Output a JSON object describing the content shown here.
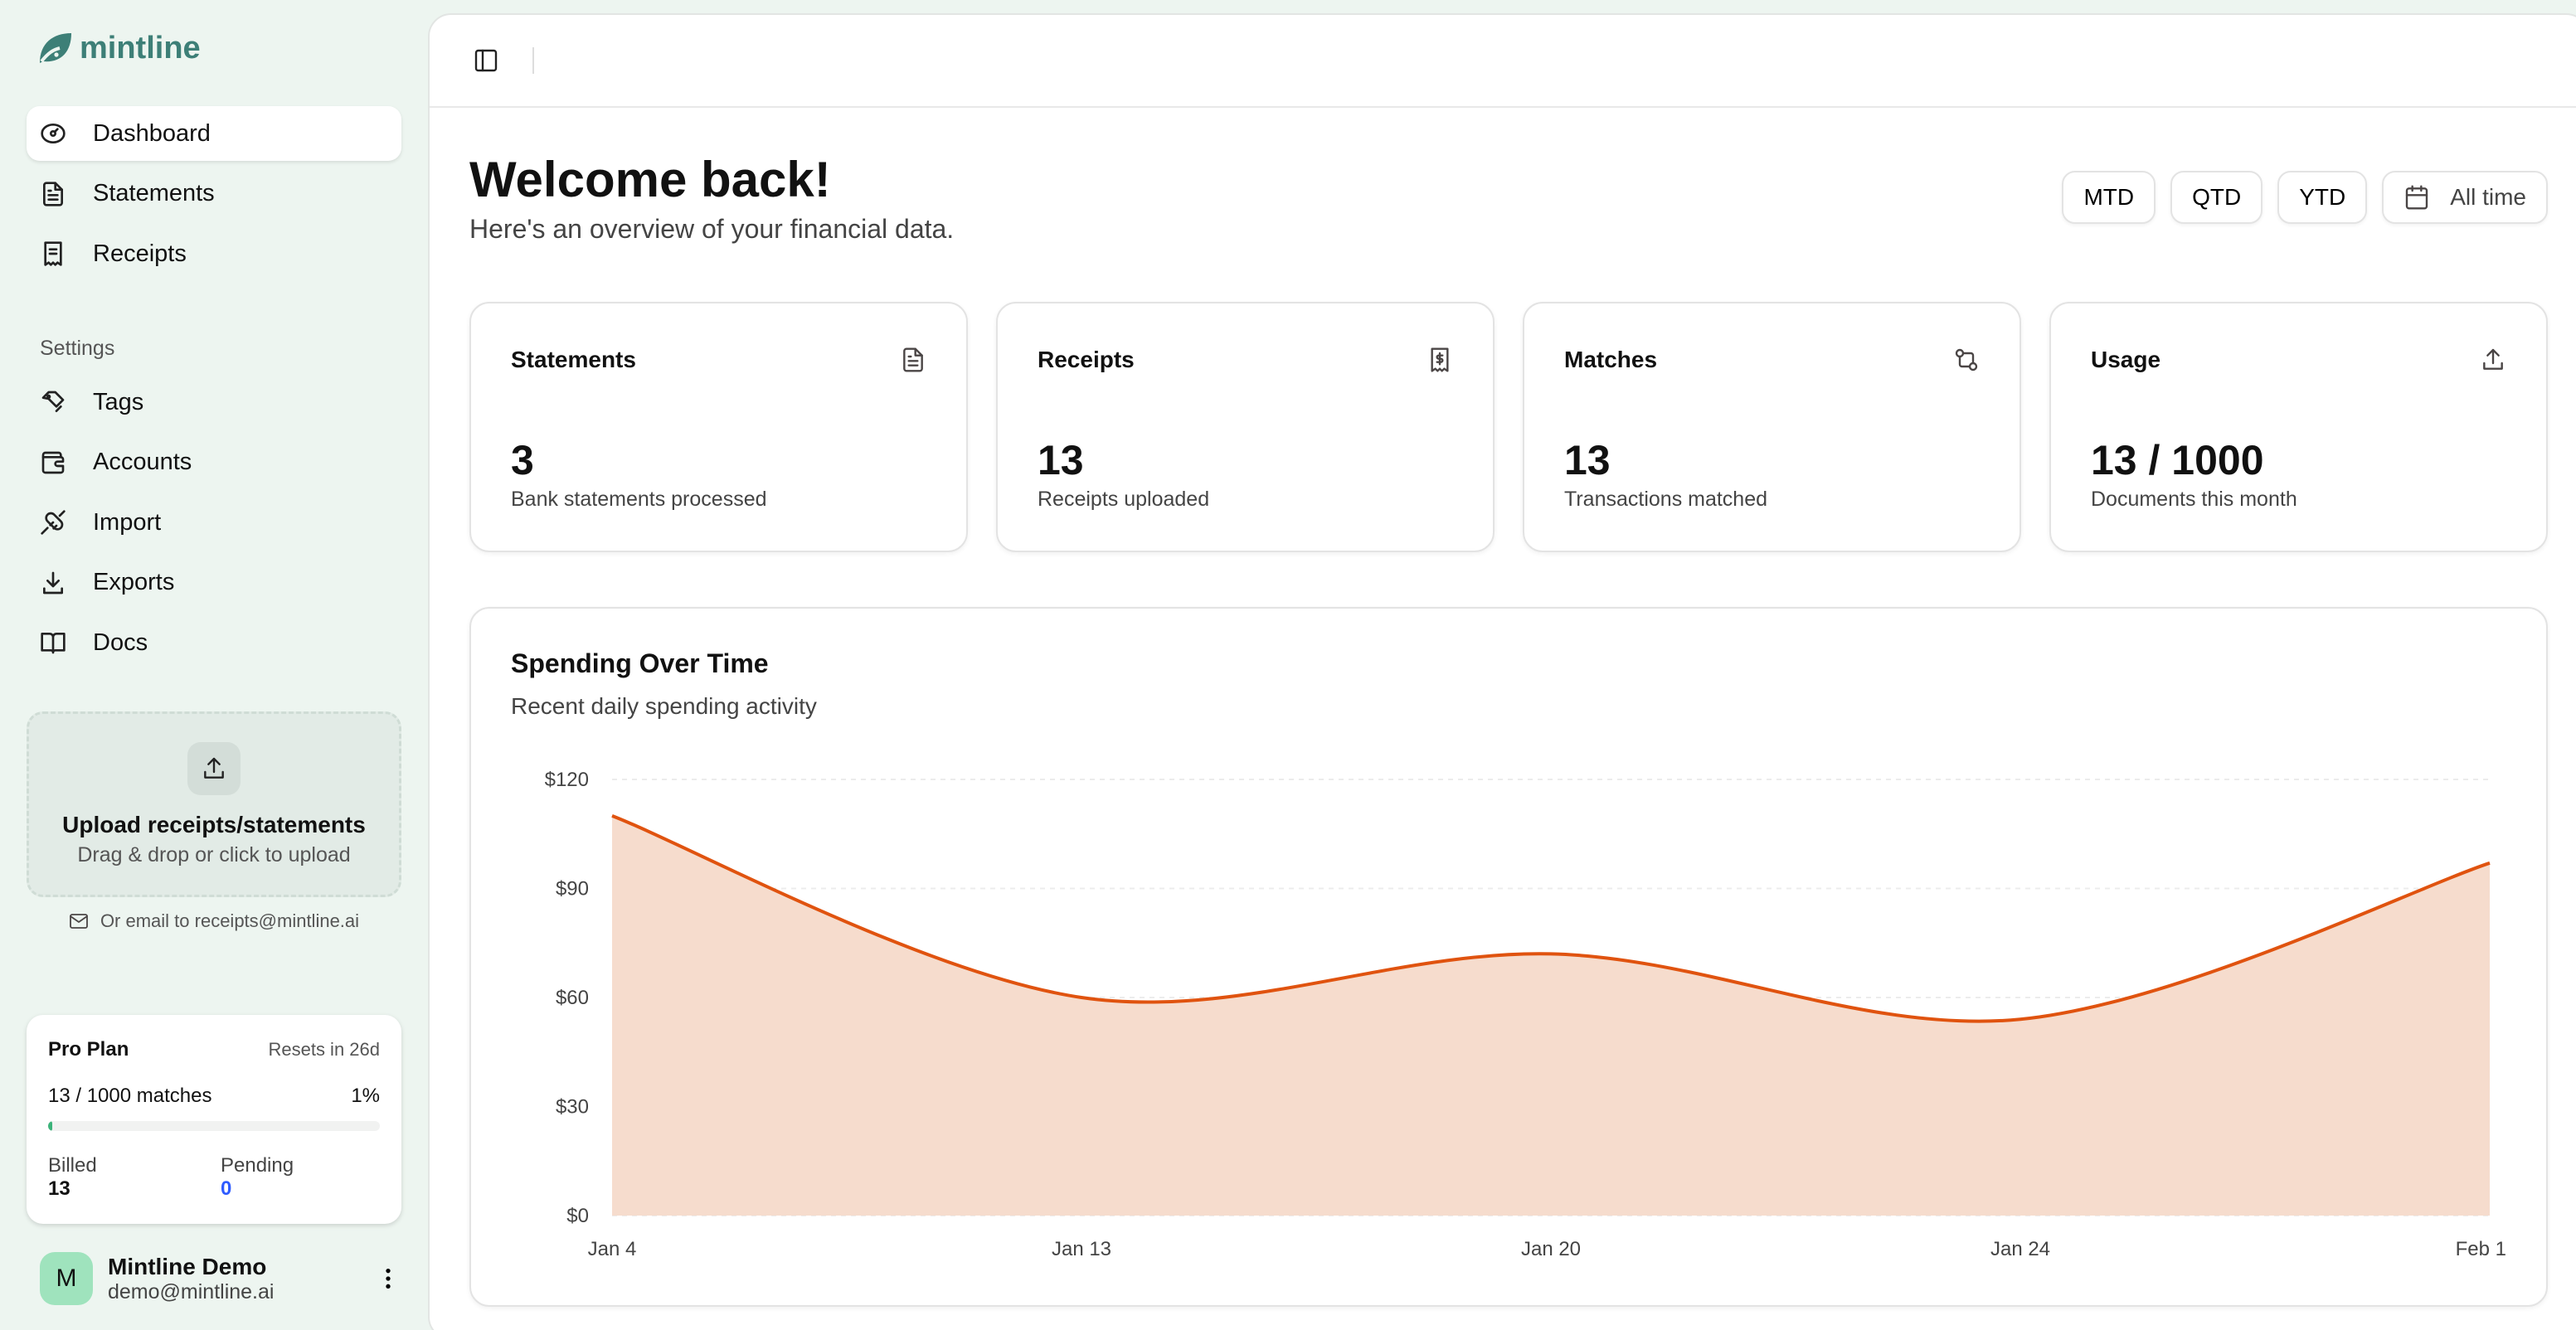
{
  "brand": {
    "name": "mintline",
    "color": "#3d7f77"
  },
  "sidebar": {
    "main_items": [
      {
        "label": "Dashboard",
        "icon": "gauge-icon",
        "active": true
      },
      {
        "label": "Statements",
        "icon": "file-text-icon"
      },
      {
        "label": "Receipts",
        "icon": "receipt-icon"
      }
    ],
    "settings_label": "Settings",
    "settings_items": [
      {
        "label": "Tags",
        "icon": "tags-icon"
      },
      {
        "label": "Accounts",
        "icon": "wallet-icon"
      },
      {
        "label": "Import",
        "icon": "plug-icon"
      },
      {
        "label": "Exports",
        "icon": "download-icon"
      },
      {
        "label": "Docs",
        "icon": "book-icon"
      }
    ],
    "upload": {
      "title": "Upload receipts/statements",
      "subtitle": "Drag & drop or click to upload",
      "email_text": "Or email to receipts@mintline.ai"
    },
    "plan": {
      "name": "Pro Plan",
      "resets": "Resets in 26d",
      "usage_text": "13 / 1000 matches",
      "percent_label": "1%",
      "percent": 1.3,
      "billed_label": "Billed",
      "billed_value": "13",
      "pending_label": "Pending",
      "pending_value": "0",
      "pending_color": "#2e5bff",
      "bar_color": "#3cb37a"
    },
    "user": {
      "initial": "M",
      "name": "Mintline Demo",
      "email": "demo@mintline.ai"
    }
  },
  "header": {
    "title": "Welcome back!",
    "subtitle": "Here's an overview of your financial data.",
    "ranges": [
      "MTD",
      "QTD",
      "YTD"
    ],
    "all_time": "All time"
  },
  "cards": [
    {
      "title": "Statements",
      "value": "3",
      "subtitle": "Bank statements processed",
      "icon": "file-text-icon"
    },
    {
      "title": "Receipts",
      "value": "13",
      "subtitle": "Receipts uploaded",
      "icon": "receipt-dollar-icon"
    },
    {
      "title": "Matches",
      "value": "13",
      "subtitle": "Transactions matched",
      "icon": "git-compare-icon"
    },
    {
      "title": "Usage",
      "value": "13 / 1000",
      "subtitle": "Documents this month",
      "icon": "upload-icon"
    }
  ],
  "chart_data": {
    "type": "area",
    "title": "Spending Over Time",
    "subtitle": "Recent daily spending activity",
    "categories": [
      "Jan 4",
      "Jan 13",
      "Jan 20",
      "Jan 24",
      "Feb 1"
    ],
    "values": [
      110,
      60,
      72,
      54,
      97
    ],
    "ylim": [
      0,
      120
    ],
    "yticks": [
      0,
      30,
      60,
      90,
      120
    ],
    "ytick_labels": [
      "$0",
      "$30",
      "$60",
      "$90",
      "$120"
    ],
    "grid": true,
    "line_color": "#e0530f",
    "fill_color": "#f6dccd"
  }
}
